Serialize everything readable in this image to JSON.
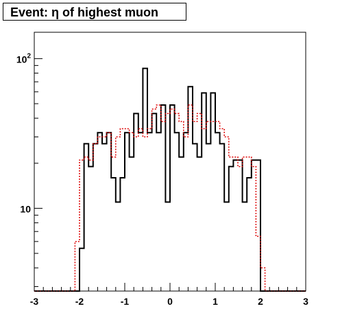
{
  "chart_data": {
    "type": "step",
    "title": "Event: η of highest muon",
    "xlim": [
      -3,
      3
    ],
    "ylim": [
      2.8,
      150
    ],
    "y_scale": "log",
    "x_ticks": [
      "-3",
      "-2",
      "-1",
      "0",
      "1",
      "2",
      "3"
    ],
    "x_tick_values": [
      -3,
      -2,
      -1,
      0,
      1,
      2,
      3
    ],
    "y_ticks": [
      {
        "value": 100,
        "base": "10",
        "exp": "2"
      },
      {
        "value": 10,
        "base": "10",
        "exp": ""
      }
    ],
    "bin_edges": [
      -3.0,
      -2.9,
      -2.8,
      -2.7,
      -2.6,
      -2.5,
      -2.4,
      -2.3,
      -2.2,
      -2.1,
      -2.0,
      -1.9,
      -1.8,
      -1.7,
      -1.6,
      -1.5,
      -1.4,
      -1.3,
      -1.2,
      -1.1,
      -1.0,
      -0.9,
      -0.8,
      -0.7,
      -0.6,
      -0.5,
      -0.4,
      -0.3,
      -0.2,
      -0.1,
      0.0,
      0.1,
      0.2,
      0.3,
      0.4,
      0.5,
      0.6,
      0.7,
      0.8,
      0.9,
      1.0,
      1.1,
      1.2,
      1.3,
      1.4,
      1.5,
      1.6,
      1.7,
      1.8,
      1.9,
      2.0,
      2.1,
      2.2,
      2.3,
      2.4,
      2.5,
      2.6,
      2.7,
      2.8,
      2.9,
      3.0
    ],
    "series": [
      {
        "color": "#000000",
        "style": "solid",
        "values": [
          0,
          0,
          0,
          0,
          0,
          0,
          0,
          0,
          0,
          0,
          5.4,
          27,
          19,
          27,
          32,
          27,
          32,
          16,
          11,
          16,
          32,
          22,
          43,
          32,
          86,
          32,
          43,
          32,
          49,
          11,
          49,
          32,
          22,
          32,
          65,
          27,
          22,
          59,
          27,
          59,
          32,
          27,
          11,
          19,
          21,
          21,
          11,
          16,
          21,
          21,
          0,
          0,
          0,
          0,
          0,
          0,
          0,
          0,
          0,
          0
        ]
      },
      {
        "color": "#dd0000",
        "style": "dashed",
        "values": [
          0,
          0,
          0,
          0,
          0,
          0,
          0,
          0,
          0,
          6,
          21,
          22,
          21,
          27,
          30,
          30,
          32,
          22,
          30,
          34,
          34,
          32,
          30,
          34,
          30,
          34,
          46,
          49,
          38,
          43,
          46,
          43,
          38,
          30,
          49,
          38,
          43,
          34,
          38,
          38,
          38,
          34,
          30,
          22,
          22,
          19,
          22,
          22,
          19,
          6.5,
          4,
          0,
          0,
          0,
          0,
          0,
          0,
          0,
          0,
          0
        ]
      }
    ]
  }
}
